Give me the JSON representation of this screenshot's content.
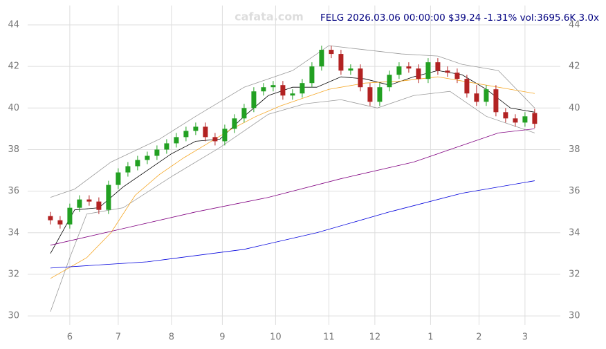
{
  "chart_data": {
    "type": "candlestick",
    "title": "FELG 2026.03.06 00:00:00 $39.24 -1.31% vol:3695.6K 3.0x",
    "watermark": "cafata.com",
    "xlim": [
      -9.4,
      210.6
    ],
    "xticks": [
      {
        "value": 8,
        "label": "6"
      },
      {
        "value": 28,
        "label": "7"
      },
      {
        "value": 50,
        "label": "8"
      },
      {
        "value": 71,
        "label": "9"
      },
      {
        "value": 93,
        "label": "10"
      },
      {
        "value": 115,
        "label": "11"
      },
      {
        "value": 134,
        "label": "12"
      },
      {
        "value": 157,
        "label": "1"
      },
      {
        "value": 177,
        "label": "2"
      },
      {
        "value": 196,
        "label": "3"
      }
    ],
    "ylim": [
      29.57,
      44.93
    ],
    "yticks": [
      30,
      32,
      34,
      36,
      38,
      40,
      42,
      44
    ],
    "grid": true,
    "up_color": "#22a022",
    "down_color": "#b22222",
    "x": [
      0,
      4,
      8,
      12,
      16,
      20,
      24,
      28,
      32,
      36,
      40,
      44,
      48,
      52,
      56,
      60,
      64,
      68,
      72,
      76,
      80,
      84,
      88,
      92,
      96,
      100,
      104,
      108,
      112,
      116,
      120,
      124,
      128,
      132,
      136,
      140,
      144,
      148,
      152,
      156,
      160,
      164,
      168,
      172,
      176,
      180,
      184,
      188,
      192,
      196,
      200
    ],
    "open": [
      34.8,
      34.6,
      34.4,
      35.2,
      35.6,
      35.5,
      35.1,
      36.3,
      36.9,
      37.2,
      37.5,
      37.7,
      38.0,
      38.3,
      38.6,
      38.9,
      39.1,
      38.6,
      38.4,
      39.0,
      39.5,
      40.0,
      40.8,
      41.0,
      41.1,
      40.6,
      40.7,
      41.2,
      42.0,
      42.8,
      42.6,
      41.8,
      41.9,
      41.0,
      40.3,
      41.0,
      41.6,
      42.0,
      41.9,
      41.4,
      42.2,
      41.8,
      41.7,
      41.4,
      40.7,
      40.3,
      40.9,
      39.8,
      39.5,
      39.3,
      39.76
    ],
    "high": [
      35.0,
      34.8,
      35.4,
      35.8,
      35.8,
      35.7,
      36.5,
      37.1,
      37.4,
      37.7,
      37.9,
      38.2,
      38.5,
      38.8,
      39.1,
      39.3,
      39.3,
      38.8,
      39.2,
      39.7,
      40.2,
      41.0,
      41.2,
      41.3,
      41.3,
      40.9,
      41.4,
      42.2,
      43.0,
      43.0,
      42.8,
      42.1,
      42.1,
      41.2,
      41.2,
      41.8,
      42.2,
      42.2,
      42.1,
      42.4,
      42.4,
      42.0,
      41.9,
      41.6,
      41.1,
      41.1,
      41.1,
      40.0,
      39.7,
      39.8,
      39.96
    ],
    "low": [
      34.4,
      34.2,
      34.2,
      35.0,
      35.3,
      34.9,
      34.9,
      36.1,
      36.7,
      37.0,
      37.3,
      37.5,
      37.8,
      38.1,
      38.4,
      38.7,
      38.4,
      38.2,
      38.2,
      38.8,
      39.3,
      39.8,
      40.6,
      40.8,
      40.4,
      40.4,
      40.5,
      41.0,
      41.8,
      42.4,
      41.6,
      41.6,
      40.8,
      40.1,
      40.1,
      40.8,
      41.4,
      41.7,
      41.2,
      41.2,
      41.6,
      41.5,
      41.2,
      40.5,
      40.1,
      40.1,
      39.6,
      39.3,
      39.1,
      39.1,
      39.04
    ],
    "close": [
      34.6,
      34.4,
      35.2,
      35.6,
      35.5,
      35.1,
      36.3,
      36.9,
      37.2,
      37.5,
      37.7,
      38.0,
      38.3,
      38.6,
      38.9,
      39.1,
      38.6,
      38.4,
      39.0,
      39.5,
      40.0,
      40.8,
      41.0,
      41.1,
      40.6,
      40.7,
      41.2,
      42.0,
      42.8,
      42.6,
      41.8,
      41.9,
      41.0,
      40.3,
      41.0,
      41.6,
      42.0,
      41.9,
      41.4,
      42.2,
      41.8,
      41.7,
      41.4,
      40.7,
      40.3,
      40.9,
      39.8,
      39.5,
      39.3,
      39.6,
      39.24
    ],
    "lines": [
      {
        "color": "#999999",
        "x": [
          0,
          10,
          25,
          45,
          60,
          80,
          100,
          115,
          130,
          145,
          160,
          170,
          185,
          200
        ],
        "values": [
          35.7,
          36.1,
          37.4,
          38.5,
          39.6,
          41.0,
          41.8,
          43.0,
          42.8,
          42.6,
          42.5,
          42.1,
          41.8,
          40.0
        ]
      },
      {
        "color": "#999999",
        "x": [
          0,
          8,
          15,
          30,
          50,
          70,
          90,
          105,
          120,
          135,
          150,
          165,
          180,
          200
        ],
        "values": [
          30.2,
          32.8,
          34.9,
          35.2,
          36.7,
          38.1,
          39.7,
          40.2,
          40.4,
          40.0,
          40.6,
          40.8,
          39.6,
          38.8
        ]
      },
      {
        "color": "#000000",
        "x": [
          0,
          10,
          20,
          30,
          40,
          50,
          60,
          70,
          80,
          90,
          100,
          110,
          120,
          130,
          140,
          150,
          160,
          170,
          180,
          190,
          200
        ],
        "values": [
          33.0,
          35.1,
          35.2,
          36.2,
          37.0,
          37.8,
          38.4,
          38.5,
          39.6,
          40.6,
          41.0,
          41.0,
          41.5,
          41.4,
          41.1,
          41.5,
          41.8,
          41.6,
          40.9,
          40.0,
          39.8
        ]
      },
      {
        "color": "#f5a623",
        "x": [
          0,
          15,
          25,
          35,
          45,
          55,
          65,
          75,
          85,
          95,
          105,
          115,
          130,
          145,
          160,
          175,
          190,
          200
        ],
        "values": [
          31.8,
          32.8,
          34.0,
          35.8,
          36.8,
          37.6,
          38.3,
          39.0,
          39.6,
          40.1,
          40.5,
          40.9,
          41.2,
          41.3,
          41.5,
          41.2,
          40.9,
          40.7
        ]
      },
      {
        "color": "#800080",
        "x": [
          0,
          30,
          60,
          90,
          120,
          150,
          170,
          185,
          200
        ],
        "values": [
          33.4,
          34.2,
          35.0,
          35.7,
          36.6,
          37.4,
          38.2,
          38.8,
          39.0
        ]
      },
      {
        "color": "#0000dd",
        "x": [
          0,
          40,
          80,
          110,
          140,
          170,
          200
        ],
        "values": [
          32.3,
          32.6,
          33.2,
          34.0,
          35.0,
          35.9,
          36.5
        ]
      }
    ]
  }
}
